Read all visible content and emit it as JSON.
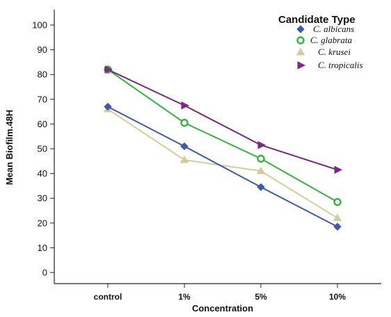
{
  "chart_data": {
    "type": "line",
    "xlabel": "Concentration",
    "ylabel": "Mean Biofilm.48H",
    "categories": [
      "control",
      "1%",
      "5%",
      "10%"
    ],
    "ylim": [
      0,
      100
    ],
    "yticks": [
      0,
      10,
      20,
      30,
      40,
      50,
      60,
      70,
      80,
      90,
      100
    ],
    "grid": false,
    "legend": {
      "title": "Candidate Type",
      "position": "top-right"
    },
    "series": [
      {
        "name": "C. albicans",
        "values": [
          67,
          51,
          34.5,
          18.5
        ],
        "color": "#3b5bb0",
        "marker": "diamond"
      },
      {
        "name": "C. glabrata",
        "values": [
          82,
          60.5,
          46,
          28.5
        ],
        "color": "#2fb53c",
        "marker": "circle"
      },
      {
        "name": "C. krusei",
        "values": [
          66,
          45.5,
          41,
          22
        ],
        "color": "#d4cc9a",
        "marker": "triangle"
      },
      {
        "name": "C. tropicalis",
        "values": [
          82,
          67.5,
          51.5,
          41.5
        ],
        "color": "#7a2a86",
        "marker": "arrow"
      }
    ]
  }
}
